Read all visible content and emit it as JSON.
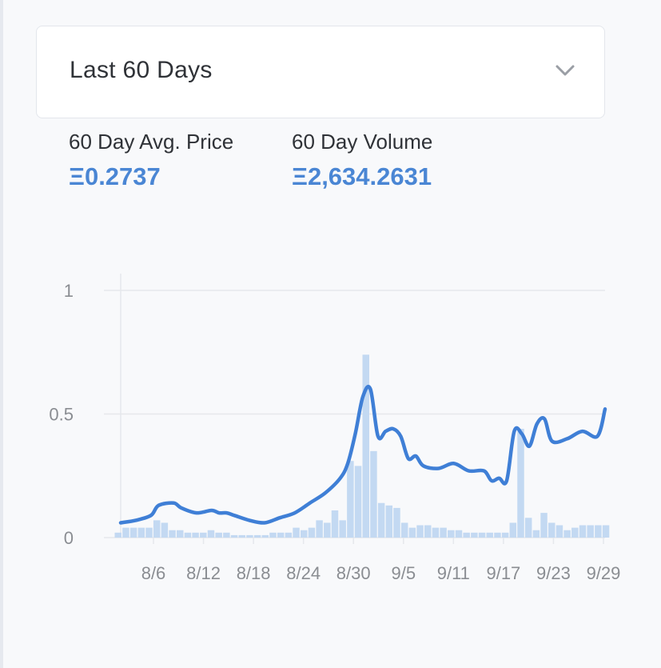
{
  "range_selector": {
    "selected": "Last 60 Days",
    "icon": "chevron-down-icon"
  },
  "stats": {
    "avg_price_label": "60 Day Avg. Price",
    "avg_price_value": "Ξ0.2737",
    "volume_label": "60 Day Volume",
    "volume_value": "Ξ2,634.2631"
  },
  "colors": {
    "accent": "#4a86d4",
    "line": "#3f7fd6",
    "bar": "#c3d9f2",
    "grid": "#e6e8ec",
    "tick_text": "#8a8d92"
  },
  "chart_data": {
    "type": "bar+line",
    "title": "",
    "xlabel": "",
    "ylabel": "",
    "ylim": [
      0,
      1
    ],
    "y_ticks": [
      "0",
      "0.5",
      "1"
    ],
    "grid": true,
    "x_ticks": [
      "8/6",
      "8/12",
      "8/18",
      "8/24",
      "8/30",
      "9/5",
      "9/11",
      "9/17",
      "9/23",
      "9/29"
    ],
    "x_start": "8/2",
    "x_end": "9/29",
    "series": [
      {
        "kind": "bar",
        "values": [
          0.02,
          0.04,
          0.04,
          0.04,
          0.04,
          0.07,
          0.06,
          0.03,
          0.03,
          0.02,
          0.02,
          0.02,
          0.03,
          0.02,
          0.02,
          0.01,
          0.01,
          0.01,
          0.01,
          0.01,
          0.02,
          0.02,
          0.02,
          0.04,
          0.03,
          0.04,
          0.07,
          0.06,
          0.11,
          0.07,
          0.31,
          0.29,
          0.74,
          0.35,
          0.14,
          0.13,
          0.12,
          0.06,
          0.04,
          0.05,
          0.05,
          0.04,
          0.04,
          0.03,
          0.03,
          0.02,
          0.02,
          0.02,
          0.02,
          0.02,
          0.02,
          0.06,
          0.44,
          0.08,
          0.03,
          0.1,
          0.06,
          0.05,
          0.03,
          0.04,
          0.05,
          0.05,
          0.05,
          0.05
        ]
      },
      {
        "kind": "line",
        "x": [
          0,
          2,
          4,
          5,
          7,
          8,
          10,
          12,
          13,
          14,
          15,
          17,
          19,
          21,
          23,
          25,
          27,
          29,
          30,
          31,
          32,
          33,
          34,
          35,
          36,
          37,
          38,
          39,
          40,
          42,
          44,
          46,
          48,
          49,
          50,
          51,
          52,
          53,
          54,
          55,
          56,
          57,
          59,
          61,
          63,
          64
        ],
        "values": [
          0.06,
          0.07,
          0.09,
          0.13,
          0.14,
          0.12,
          0.1,
          0.11,
          0.1,
          0.1,
          0.09,
          0.07,
          0.06,
          0.08,
          0.1,
          0.14,
          0.18,
          0.24,
          0.3,
          0.42,
          0.57,
          0.6,
          0.41,
          0.43,
          0.44,
          0.41,
          0.32,
          0.33,
          0.29,
          0.28,
          0.3,
          0.27,
          0.27,
          0.23,
          0.24,
          0.23,
          0.43,
          0.42,
          0.37,
          0.46,
          0.48,
          0.39,
          0.4,
          0.43,
          0.41,
          0.52
        ]
      }
    ]
  }
}
